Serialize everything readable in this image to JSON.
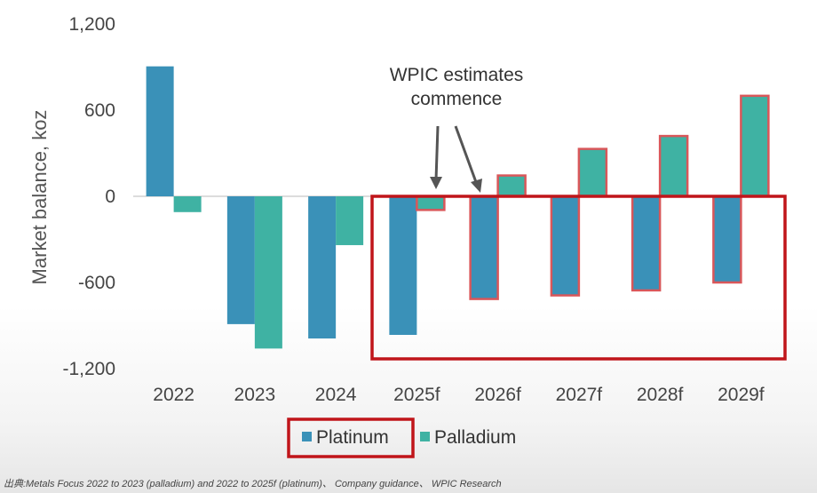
{
  "chart_data": {
    "type": "bar",
    "ylabel": "Market balance, koz",
    "ylim": [
      -1200,
      1200
    ],
    "yticks": [
      {
        "value": 1200,
        "label": "1,200"
      },
      {
        "value": 600,
        "label": "600"
      },
      {
        "value": 0,
        "label": "0"
      },
      {
        "value": -600,
        "label": "-600"
      },
      {
        "value": -1200,
        "label": "-1,200"
      }
    ],
    "categories": [
      "2022",
      "2023",
      "2024",
      "2025f",
      "2026f",
      "2027f",
      "2028f",
      "2029f"
    ],
    "series": [
      {
        "name": "Platinum",
        "color": "#3a91b8",
        "values": [
          905,
          -890,
          -990,
          -965,
          -715,
          -690,
          -655,
          -600
        ]
      },
      {
        "name": "Palladium",
        "color": "#3fb2a3",
        "values": [
          -110,
          -1060,
          -340,
          -95,
          145,
          330,
          420,
          700
        ]
      }
    ],
    "annotation": {
      "line1": "WPIC estimates",
      "line2": "commence"
    },
    "forecast_highlight_color": "#c0151a",
    "outlined_bar_color": "#d9575a",
    "legend_placement": "bottom",
    "grid": false
  },
  "source_note": "出典:Metals Focus 2022 to 2023 (palladium) and 2022 to 2025f (platinum)、 Company guidance、 WPIC Research"
}
